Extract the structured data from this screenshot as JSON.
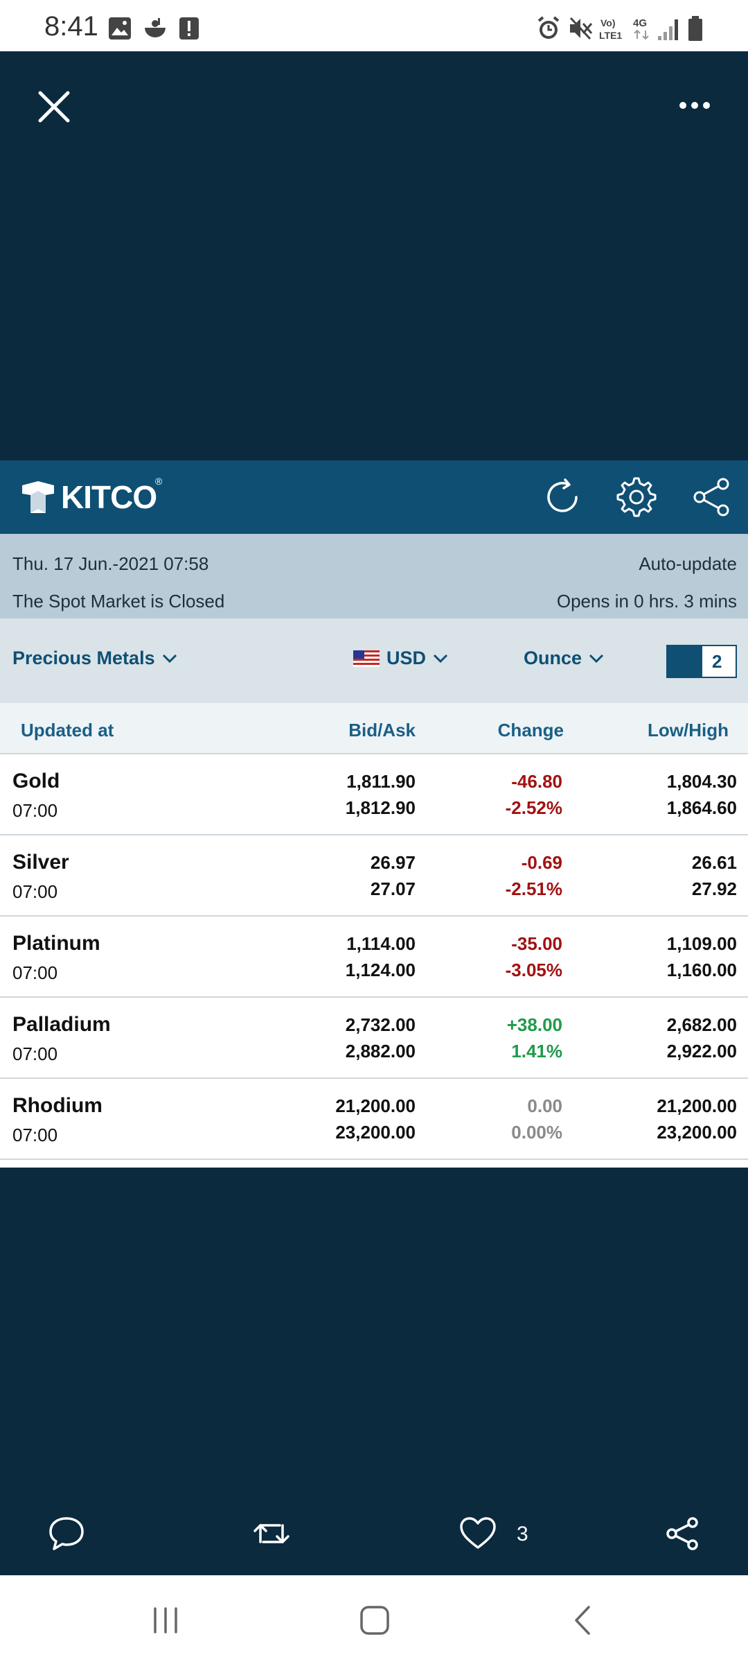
{
  "status_bar": {
    "time": "8:41"
  },
  "widget": {
    "brand": "KITCO",
    "registered": "®",
    "info": {
      "date_time": "Thu. 17 Jun.-2021 07:58",
      "auto_update": "Auto-update",
      "market_status": "The Spot Market is Closed",
      "opens_in": "Opens in 0 hrs. 3 mins"
    },
    "filters": {
      "category": "Precious Metals",
      "currency": "USD",
      "unit": "Ounce",
      "toggle_value": "2"
    },
    "columns": {
      "updated_at": "Updated at",
      "bid_ask": "Bid/Ask",
      "change": "Change",
      "low_high": "Low/High"
    },
    "rows": [
      {
        "name": "Gold",
        "time": "07:00",
        "bid": "1,811.90",
        "ask": "1,812.90",
        "change": "-46.80",
        "change_pct": "-2.52%",
        "low": "1,804.30",
        "high": "1,864.60"
      },
      {
        "name": "Silver",
        "time": "07:00",
        "bid": "26.97",
        "ask": "27.07",
        "change": "-0.69",
        "change_pct": "-2.51%",
        "low": "26.61",
        "high": "27.92"
      },
      {
        "name": "Platinum",
        "time": "07:00",
        "bid": "1,114.00",
        "ask": "1,124.00",
        "change": "-35.00",
        "change_pct": "-3.05%",
        "low": "1,109.00",
        "high": "1,160.00"
      },
      {
        "name": "Palladium",
        "time": "07:00",
        "bid": "2,732.00",
        "ask": "2,882.00",
        "change": "+38.00",
        "change_pct": "1.41%",
        "low": "2,682.00",
        "high": "2,922.00"
      },
      {
        "name": "Rhodium",
        "time": "07:00",
        "bid": "21,200.00",
        "ask": "23,200.00",
        "change": "0.00",
        "change_pct": "0.00%",
        "low": "21,200.00",
        "high": "23,200.00"
      }
    ]
  },
  "actions": {
    "like_count": "3"
  },
  "colors": {
    "dark_bg": "#0b2a3e",
    "kitco_blue": "#0f4f73",
    "negative": "#a11212",
    "positive": "#1f9a4a"
  }
}
